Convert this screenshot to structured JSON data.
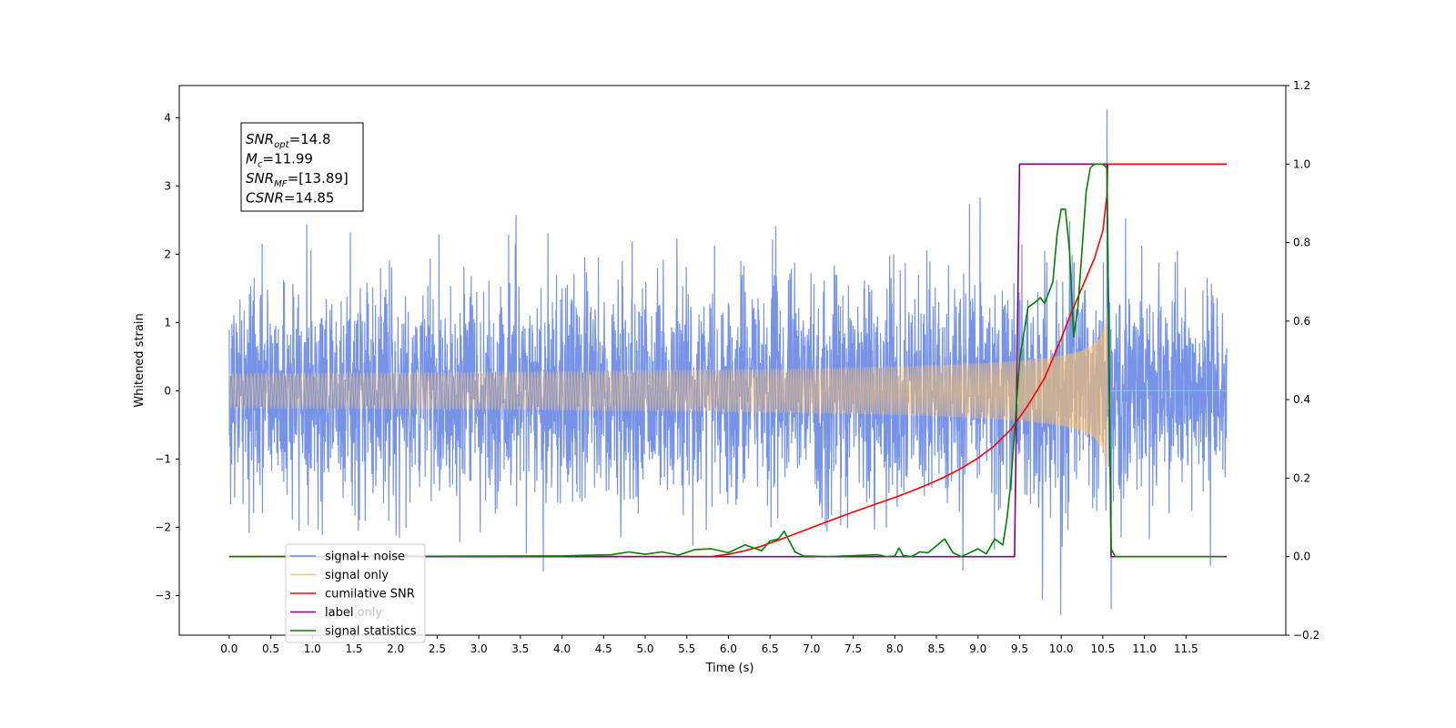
{
  "chart_data": {
    "type": "line",
    "xlabel": "Time (s)",
    "ylabel": "Whitened strain",
    "xlim": [
      -0.6,
      12.7
    ],
    "ylim": [
      -3.58,
      4.47
    ],
    "y2lim": [
      -0.2,
      1.2
    ],
    "x_ticks": [
      0.0,
      0.5,
      1.0,
      1.5,
      2.0,
      2.5,
      3.0,
      3.5,
      4.0,
      4.5,
      5.0,
      5.5,
      6.0,
      6.5,
      7.0,
      7.5,
      8.0,
      8.5,
      9.0,
      9.5,
      10.0,
      10.5,
      11.0,
      11.5
    ],
    "x_tick_labels": [
      "0.0",
      "0.5",
      "1.0",
      "1.5",
      "2.0",
      "2.5",
      "3.0",
      "3.5",
      "4.0",
      "4.5",
      "5.0",
      "5.5",
      "6.0",
      "6.5",
      "7.0",
      "7.5",
      "8.0",
      "8.5",
      "9.0",
      "9.5",
      "10.0",
      "10.5",
      "11.0",
      "11.5"
    ],
    "y_ticks": [
      -3,
      -2,
      -1,
      0,
      1,
      2,
      3,
      4
    ],
    "y_tick_labels": [
      "−3",
      "−2",
      "−1",
      "0",
      "1",
      "2",
      "3",
      "4"
    ],
    "y2_ticks": [
      -0.2,
      0.0,
      0.2,
      0.4,
      0.6,
      0.8,
      1.0,
      1.2
    ],
    "y2_tick_labels": [
      "−0.2",
      "0.0",
      "0.2",
      "0.4",
      "0.6",
      "0.8",
      "1.0",
      "1.2"
    ],
    "grid": false,
    "legend_position": "bottom-left",
    "annotation_lines": [
      {
        "base": "SNR",
        "sub": "opt",
        "value": "=14.8"
      },
      {
        "base": "M",
        "sub": "c",
        "value": "=11.99"
      },
      {
        "base": "SNR",
        "sub": "MF",
        "value": "=[13.89]"
      },
      {
        "base": "CSNR",
        "sub": "",
        "value": "=14.85"
      }
    ],
    "series": [
      {
        "name": "signal+ noise",
        "color": "#6a8ae6",
        "axis": "left",
        "noise_std": 0.8,
        "x_range": [
          0.0,
          11.99
        ],
        "peak": {
          "x": 10.55,
          "y": 4.12
        },
        "trough": {
          "x": 10.6,
          "y": -3.2
        }
      },
      {
        "name": "signal only",
        "color": "#ffc266",
        "axis": "left",
        "chirp": {
          "start": 0.0,
          "merger": 10.55,
          "end": 11.99,
          "peak_amplitude": 1.35
        }
      },
      {
        "name": "cumilative SNR",
        "color": "#ff0000",
        "axis": "right",
        "x": [
          0.0,
          5.8,
          6.0,
          6.2,
          6.4,
          6.6,
          6.8,
          7.0,
          7.2,
          7.4,
          7.6,
          7.8,
          8.0,
          8.2,
          8.4,
          8.6,
          8.8,
          9.0,
          9.2,
          9.4,
          9.6,
          9.8,
          10.0,
          10.1,
          10.2,
          10.3,
          10.4,
          10.5,
          10.55,
          10.56,
          11.99
        ],
        "y": [
          0.0,
          0.0,
          0.006,
          0.015,
          0.027,
          0.042,
          0.058,
          0.074,
          0.09,
          0.106,
          0.121,
          0.136,
          0.151,
          0.167,
          0.184,
          0.203,
          0.225,
          0.251,
          0.283,
          0.325,
          0.385,
          0.455,
          0.555,
          0.61,
          0.66,
          0.71,
          0.76,
          0.83,
          0.92,
          1.0,
          1.0
        ]
      },
      {
        "name": "label",
        "color": "#800080",
        "axis": "right",
        "x": [
          0.0,
          9.44,
          9.5,
          10.5,
          10.55,
          10.6,
          11.99
        ],
        "y": [
          0.0,
          0.0,
          1.0,
          1.0,
          1.0,
          0.0,
          0.0
        ]
      },
      {
        "name": "signal statistics",
        "color": "#008000",
        "axis": "right",
        "x": [
          0.0,
          4.0,
          4.6,
          4.8,
          5.0,
          5.2,
          5.4,
          5.6,
          5.8,
          6.0,
          6.2,
          6.4,
          6.5,
          6.6,
          6.67,
          6.8,
          6.9,
          7.2,
          7.8,
          7.9,
          8.0,
          8.05,
          8.1,
          8.2,
          8.3,
          8.4,
          8.6,
          8.7,
          8.8,
          9.0,
          9.1,
          9.2,
          9.3,
          9.35,
          9.4,
          9.45,
          9.5,
          9.6,
          9.7,
          9.75,
          9.8,
          9.9,
          9.95,
          10.0,
          10.05,
          10.1,
          10.15,
          10.2,
          10.3,
          10.35,
          10.4,
          10.45,
          10.5,
          10.55,
          10.6,
          10.65,
          11.95
        ],
        "y": [
          0.0,
          0.002,
          0.005,
          0.012,
          0.006,
          0.012,
          0.004,
          0.018,
          0.02,
          0.01,
          0.03,
          0.015,
          0.04,
          0.045,
          0.065,
          0.012,
          0.002,
          0.0,
          0.005,
          0.0,
          0.002,
          0.022,
          0.003,
          0.0,
          0.012,
          0.01,
          0.045,
          0.01,
          0.0,
          0.02,
          0.007,
          0.045,
          0.03,
          0.1,
          0.2,
          0.35,
          0.5,
          0.635,
          0.65,
          0.66,
          0.645,
          0.7,
          0.82,
          0.885,
          0.885,
          0.78,
          0.56,
          0.63,
          0.93,
          0.99,
          1.0,
          1.0,
          1.0,
          0.99,
          0.02,
          0.0,
          0.0
        ]
      }
    ],
    "extra_legend_text": "label only"
  }
}
